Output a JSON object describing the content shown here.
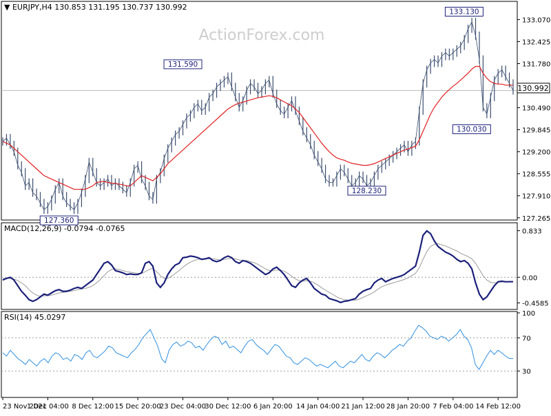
{
  "watermark": "ActionForex.com",
  "chart_data": [
    {
      "type": "line",
      "panel": "price",
      "header": "▼ EURJPY,H4  130.853 131.195 130.737 130.992",
      "current_price_label": "130.992",
      "yticks": [
        127.265,
        127.91,
        128.555,
        129.2,
        129.845,
        130.49,
        131.135,
        131.78,
        132.425,
        133.07
      ],
      "ytick_labels": [
        "127.265",
        "127.910",
        "128.555",
        "129.200",
        "129.845",
        "130.490",
        "131.135",
        "131.780",
        "132.425",
        "133.070"
      ],
      "ylim": [
        127.24,
        133.24
      ],
      "annotations": [
        {
          "text": "131.590",
          "x": 48,
          "y": 131.59
        },
        {
          "text": "127.360",
          "x": 15,
          "y": 127.36
        },
        {
          "text": "128.230",
          "x": 97,
          "y": 128.23
        },
        {
          "text": "133.130",
          "x": 128,
          "y": 133.13
        },
        {
          "text": "130.030",
          "x": 130,
          "y": 130.03
        }
      ],
      "series": [
        {
          "values": [
            129.5,
            129.6,
            129.4,
            129.2,
            128.8,
            128.6,
            128.2,
            128.3,
            128.0,
            127.9,
            127.7,
            127.5,
            127.6,
            127.8,
            128.1,
            128.3,
            127.9,
            127.7,
            127.6,
            127.5,
            127.7,
            128.0,
            128.4,
            128.9,
            128.6,
            128.3,
            128.2,
            128.3,
            128.4,
            128.2,
            128.3,
            128.2,
            128.1,
            128.0,
            128.3,
            128.7,
            128.8,
            128.4,
            128.2,
            127.9,
            127.8,
            128.4,
            128.6,
            129.0,
            129.3,
            129.5,
            129.7,
            129.8,
            130.0,
            130.2,
            130.3,
            130.5,
            130.6,
            130.4,
            130.5,
            130.8,
            130.9,
            131.1,
            131.2,
            131.3,
            131.4,
            131.1,
            130.8,
            130.5,
            130.7,
            131.0,
            131.2,
            131.1,
            130.9,
            131.0,
            131.2,
            131.3,
            130.9,
            130.6,
            130.4,
            130.3,
            130.5,
            130.7,
            130.4,
            130.1,
            129.8,
            129.6,
            129.4,
            129.1,
            128.9,
            128.7,
            128.4,
            128.3,
            128.3,
            128.5,
            128.7,
            128.6,
            128.4,
            128.2,
            128.3,
            128.5,
            128.4,
            128.2,
            128.3,
            128.5,
            128.7,
            128.8,
            128.9,
            129.0,
            129.1,
            129.2,
            129.3,
            129.4,
            129.2,
            129.4,
            129.5,
            130.4,
            131.2,
            131.6,
            131.8,
            131.9,
            131.8,
            132.0,
            132.1,
            132.0,
            132.1,
            132.2,
            132.3,
            132.5,
            132.8,
            133.0,
            132.6,
            131.9,
            130.5,
            130.3,
            130.8,
            131.3,
            131.5,
            131.6,
            131.4,
            131.2,
            130.992
          ],
          "ma": [
            129.5,
            129.45,
            129.4,
            129.3,
            129.2,
            129.1,
            129.0,
            128.9,
            128.8,
            128.7,
            128.6,
            128.5,
            128.45,
            128.4,
            128.35,
            128.3,
            128.25,
            128.2,
            128.15,
            128.1,
            128.1,
            128.1,
            128.1,
            128.15,
            128.2,
            128.3,
            128.32,
            128.33,
            128.3,
            128.28,
            128.27,
            128.25,
            128.23,
            128.2,
            128.2,
            128.3,
            128.4,
            128.5,
            128.45,
            128.4,
            128.35,
            128.45,
            128.55,
            128.7,
            128.85,
            128.95,
            129.05,
            129.15,
            129.25,
            129.35,
            129.45,
            129.55,
            129.65,
            129.75,
            129.85,
            129.95,
            130.05,
            130.15,
            130.25,
            130.35,
            130.45,
            130.52,
            130.58,
            130.62,
            130.65,
            130.68,
            130.72,
            130.75,
            130.78,
            130.8,
            130.82,
            130.84,
            130.82,
            130.78,
            130.72,
            130.66,
            130.6,
            130.55,
            130.45,
            130.35,
            130.2,
            130.05,
            129.9,
            129.75,
            129.6,
            129.45,
            129.32,
            129.2,
            129.1,
            129.02,
            128.98,
            128.95,
            128.9,
            128.86,
            128.84,
            128.82,
            128.8,
            128.8,
            128.82,
            128.85,
            128.9,
            128.95,
            129.0,
            129.05,
            129.1,
            129.15,
            129.2,
            129.25,
            129.28,
            129.32,
            129.36,
            129.55,
            129.8,
            130.05,
            130.3,
            130.5,
            130.65,
            130.8,
            130.92,
            131.02,
            131.12,
            131.2,
            131.3,
            131.4,
            131.5,
            131.62,
            131.7,
            131.7,
            131.5,
            131.35,
            131.25,
            131.2,
            131.18,
            131.18,
            131.15,
            131.15,
            131.15
          ]
        }
      ]
    },
    {
      "type": "line",
      "panel": "macd",
      "header": "MACD(12,26,9) -0.0794 -0.0765",
      "yticks": [
        -0.4585,
        0.0,
        0.833
      ],
      "ytick_labels": [
        "-0.4585",
        "0.00",
        "0.833"
      ],
      "ylim": [
        -0.55,
        0.95
      ],
      "series": [
        {
          "values": [
            -0.05,
            -0.02,
            0.0,
            -0.05,
            -0.15,
            -0.25,
            -0.32,
            -0.4,
            -0.43,
            -0.4,
            -0.35,
            -0.3,
            -0.32,
            -0.28,
            -0.24,
            -0.22,
            -0.25,
            -0.25,
            -0.23,
            -0.2,
            -0.18,
            -0.2,
            -0.15,
            -0.1,
            -0.05,
            0.05,
            0.15,
            0.25,
            0.28,
            0.22,
            0.12,
            0.1,
            0.08,
            0.05,
            0.06,
            0.05,
            0.05,
            0.08,
            0.25,
            0.28,
            0.2,
            -0.1,
            -0.18,
            -0.1,
            0.05,
            0.15,
            0.22,
            0.25,
            0.35,
            0.36,
            0.38,
            0.37,
            0.35,
            0.32,
            0.33,
            0.35,
            0.3,
            0.28,
            0.3,
            0.35,
            0.38,
            0.35,
            0.28,
            0.25,
            0.3,
            0.28,
            0.25,
            0.2,
            0.15,
            0.1,
            0.05,
            0.08,
            0.15,
            0.18,
            0.12,
            0.05,
            -0.05,
            -0.15,
            -0.18,
            -0.1,
            -0.05,
            -0.02,
            -0.1,
            -0.2,
            -0.25,
            -0.3,
            -0.32,
            -0.38,
            -0.4,
            -0.42,
            -0.45,
            -0.43,
            -0.42,
            -0.4,
            -0.38,
            -0.3,
            -0.25,
            -0.22,
            -0.2,
            -0.1,
            -0.05,
            -0.02,
            -0.08,
            -0.05,
            -0.02,
            0.0,
            0.02,
            0.05,
            0.1,
            0.15,
            0.2,
            0.45,
            0.75,
            0.83,
            0.78,
            0.65,
            0.55,
            0.5,
            0.45,
            0.42,
            0.38,
            0.32,
            0.28,
            0.3,
            0.25,
            0.15,
            -0.1,
            -0.3,
            -0.4,
            -0.35,
            -0.25,
            -0.15,
            -0.08,
            -0.07,
            -0.08,
            -0.0794,
            -0.0794
          ]
        },
        {
          "values": [
            -0.02,
            -0.02,
            -0.02,
            -0.03,
            -0.06,
            -0.1,
            -0.15,
            -0.22,
            -0.28,
            -0.32,
            -0.34,
            -0.33,
            -0.33,
            -0.32,
            -0.3,
            -0.28,
            -0.27,
            -0.26,
            -0.25,
            -0.24,
            -0.22,
            -0.21,
            -0.2,
            -0.18,
            -0.15,
            -0.1,
            -0.04,
            0.03,
            0.1,
            0.14,
            0.15,
            0.14,
            0.12,
            0.1,
            0.09,
            0.08,
            0.07,
            0.07,
            0.1,
            0.14,
            0.16,
            0.1,
            0.03,
            -0.02,
            -0.02,
            0.02,
            0.07,
            0.12,
            0.18,
            0.23,
            0.27,
            0.3,
            0.32,
            0.33,
            0.33,
            0.33,
            0.33,
            0.32,
            0.31,
            0.32,
            0.33,
            0.34,
            0.33,
            0.31,
            0.3,
            0.3,
            0.28,
            0.26,
            0.23,
            0.19,
            0.15,
            0.12,
            0.12,
            0.13,
            0.13,
            0.11,
            0.07,
            0.02,
            -0.03,
            -0.06,
            -0.07,
            -0.06,
            -0.07,
            -0.1,
            -0.14,
            -0.19,
            -0.23,
            -0.27,
            -0.31,
            -0.35,
            -0.38,
            -0.4,
            -0.41,
            -0.41,
            -0.41,
            -0.39,
            -0.36,
            -0.33,
            -0.3,
            -0.26,
            -0.21,
            -0.17,
            -0.14,
            -0.12,
            -0.1,
            -0.08,
            -0.06,
            -0.04,
            -0.01,
            0.03,
            0.07,
            0.17,
            0.32,
            0.46,
            0.55,
            0.59,
            0.6,
            0.58,
            0.56,
            0.53,
            0.5,
            0.47,
            0.43,
            0.4,
            0.37,
            0.33,
            0.25,
            0.14,
            0.03,
            -0.05,
            -0.09,
            -0.1,
            -0.09,
            -0.08,
            -0.08,
            -0.0765,
            -0.0765
          ]
        }
      ]
    },
    {
      "type": "line",
      "panel": "rsi",
      "header": "RSI(14) 45.0297",
      "yticks": [
        30,
        70,
        100
      ],
      "ytick_labels": [
        "30",
        "70",
        "100"
      ],
      "ylim": [
        0,
        100
      ],
      "reference_lines": [
        30,
        70
      ],
      "series": [
        {
          "values": [
            52,
            48,
            55,
            50,
            45,
            42,
            38,
            44,
            40,
            36,
            42,
            45,
            40,
            48,
            52,
            50,
            44,
            46,
            42,
            50,
            48,
            44,
            52,
            55,
            48,
            46,
            50,
            54,
            60,
            58,
            52,
            50,
            48,
            46,
            52,
            56,
            62,
            70,
            75,
            80,
            70,
            60,
            45,
            40,
            55,
            62,
            65,
            60,
            62,
            66,
            64,
            58,
            60,
            55,
            62,
            68,
            72,
            70,
            62,
            66,
            58,
            60,
            56,
            52,
            60,
            66,
            68,
            62,
            58,
            55,
            50,
            56,
            62,
            60,
            54,
            48,
            46,
            40,
            38,
            42,
            46,
            44,
            40,
            36,
            38,
            36,
            34,
            38,
            42,
            36,
            34,
            38,
            42,
            40,
            45,
            50,
            44,
            42,
            48,
            52,
            50,
            46,
            50,
            55,
            58,
            62,
            60,
            66,
            70,
            78,
            85,
            82,
            78,
            72,
            70,
            68,
            72,
            70,
            66,
            70,
            74,
            80,
            72,
            68,
            58,
            38,
            32,
            40,
            48,
            55,
            50,
            55,
            52,
            48,
            45.0297,
            45.0297
          ]
        }
      ]
    }
  ],
  "x_axis": {
    "labels": [
      "23 Nov 2021",
      "1 Dec 04:00",
      "8 Dec 12:00",
      "15 Dec 20:00",
      "23 Dec 04:00",
      "30 Dec 12:00",
      "6 Jan 20:00",
      "14 Jan 04:00",
      "21 Jan 12:00",
      "28 Jan 20:00",
      "7 Feb 04:00",
      "14 Feb 12:00"
    ],
    "tick_index": [
      0,
      12,
      24,
      36,
      48,
      60,
      72,
      84,
      96,
      108,
      120,
      132
    ]
  },
  "colors": {
    "background": "#ffffff",
    "price_line": "#3a4d6e",
    "moving_average": "#e02020",
    "macd_line": "#1a1f7a",
    "signal_line": "#9a9a9a",
    "rsi_line": "#2f8fe0",
    "border": "#000000",
    "grid_dotted": "#9a9a9a"
  }
}
